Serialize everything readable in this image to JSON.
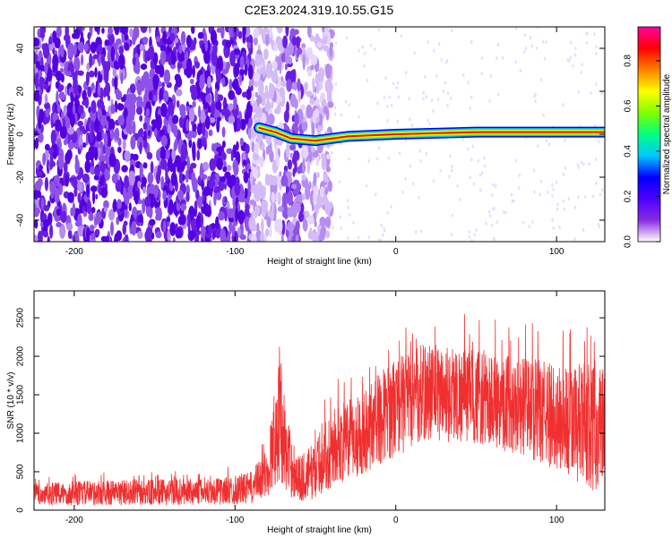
{
  "title": "C2E3.2024.319.10.55.G15",
  "chart_data": [
    {
      "type": "heatmap",
      "xlabel": "Height of straight line (km)",
      "ylabel": "Frequency (Hz)",
      "xlim": [
        -225,
        130
      ],
      "ylim": [
        -50,
        50
      ],
      "xticks": [
        -200,
        -100,
        0,
        100
      ],
      "yticks": [
        -40,
        -20,
        0,
        20,
        40
      ],
      "grid": false,
      "colorbar": {
        "label": "Normalized spectral amplitude",
        "range": [
          0.0,
          0.95
        ],
        "ticks": [
          0.0,
          0.2,
          0.4,
          0.6,
          0.8
        ],
        "colormap": [
          "#ffffff",
          "#8a2be2",
          "#4b00ff",
          "#0000ff",
          "#00c8ff",
          "#00ff80",
          "#80ff00",
          "#ffff00",
          "#ff8000",
          "#ff0000",
          "#ff00a0"
        ]
      },
      "features": {
        "noise_region_x": [
          -225,
          -40
        ],
        "strong_noise_x": [
          -225,
          -90
        ],
        "carrier_frequency_track": [
          {
            "x": -85,
            "y": 3
          },
          {
            "x": -75,
            "y": 1
          },
          {
            "x": -65,
            "y": -2
          },
          {
            "x": -50,
            "y": -3
          },
          {
            "x": -30,
            "y": -1
          },
          {
            "x": 0,
            "y": 0
          },
          {
            "x": 50,
            "y": 1
          },
          {
            "x": 100,
            "y": 1
          },
          {
            "x": 130,
            "y": 1
          }
        ]
      }
    },
    {
      "type": "line",
      "xlabel": "Height of straight line (km)",
      "ylabel": "SNR (10 * v/v)",
      "xlim": [
        -225,
        130
      ],
      "ylim": [
        0,
        2850
      ],
      "xticks": [
        -200,
        -100,
        0,
        100
      ],
      "yticks": [
        0,
        500,
        1000,
        1500,
        2000,
        2500
      ],
      "grid": false,
      "color": "#f03030",
      "envelope": [
        {
          "x": -225,
          "lo": 50,
          "hi": 350
        },
        {
          "x": -200,
          "lo": 60,
          "hi": 380
        },
        {
          "x": -150,
          "lo": 60,
          "hi": 400
        },
        {
          "x": -110,
          "lo": 70,
          "hi": 420
        },
        {
          "x": -90,
          "lo": 80,
          "hi": 500
        },
        {
          "x": -80,
          "lo": 150,
          "hi": 800
        },
        {
          "x": -72,
          "lo": 400,
          "hi": 2200
        },
        {
          "x": -68,
          "lo": 200,
          "hi": 1200
        },
        {
          "x": -60,
          "lo": 100,
          "hi": 700
        },
        {
          "x": -50,
          "lo": 150,
          "hi": 900
        },
        {
          "x": -40,
          "lo": 300,
          "hi": 1300
        },
        {
          "x": -25,
          "lo": 400,
          "hi": 1500
        },
        {
          "x": -10,
          "lo": 600,
          "hi": 1800
        },
        {
          "x": 0,
          "lo": 700,
          "hi": 2000
        },
        {
          "x": 20,
          "lo": 900,
          "hi": 2200
        },
        {
          "x": 50,
          "lo": 850,
          "hi": 2100
        },
        {
          "x": 80,
          "lo": 700,
          "hi": 2000
        },
        {
          "x": 100,
          "lo": 500,
          "hi": 1900
        },
        {
          "x": 115,
          "lo": 300,
          "hi": 1900
        },
        {
          "x": 130,
          "lo": 200,
          "hi": 2000
        }
      ]
    }
  ]
}
